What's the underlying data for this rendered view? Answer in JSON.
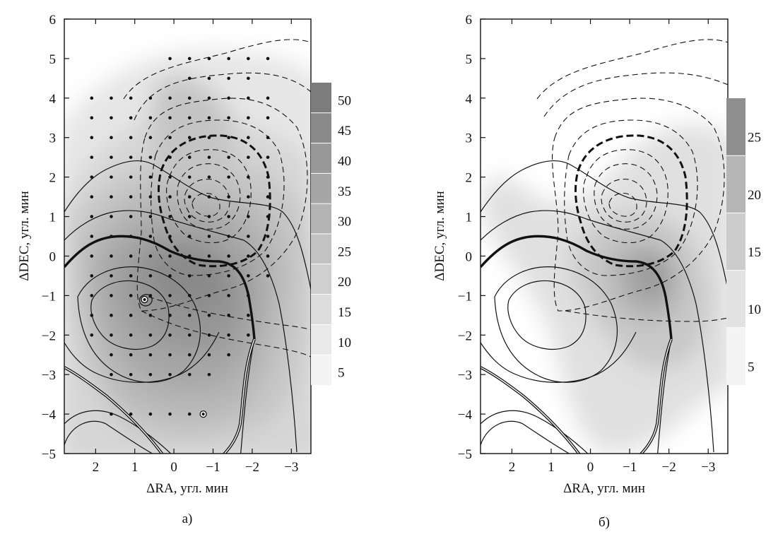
{
  "chart_data": [
    {
      "type": "heatmap",
      "panel_label": "а)",
      "xlabel": "ΔRA, угл. мин",
      "ylabel": "ΔDEC, угл. мин",
      "xlim": [
        2.8,
        -3.5
      ],
      "ylim": [
        -5,
        6
      ],
      "x_ticks": [
        2,
        1,
        0,
        -1,
        -2,
        -3
      ],
      "x_tick_labels": [
        "2",
        "1",
        "0",
        "−1",
        "−2",
        "−3"
      ],
      "y_ticks": [
        -5,
        -4,
        -3,
        -2,
        -1,
        0,
        1,
        2,
        3,
        4,
        5,
        6
      ],
      "y_tick_labels": [
        "−5",
        "−4",
        "−3",
        "−2",
        "−1",
        "0",
        "1",
        "2",
        "3",
        "4",
        "5",
        "6"
      ],
      "colorbar": {
        "levels": [
          5,
          10,
          15,
          20,
          25,
          30,
          35,
          40,
          45,
          50
        ],
        "labels": [
          "5",
          "10",
          "15",
          "20",
          "25",
          "30",
          "35",
          "40",
          "45",
          "50"
        ],
        "range": [
          2.5,
          52.5
        ],
        "colors": [
          "#f4f4f4",
          "#e9e9e9",
          "#dcdcdc",
          "#cfcfcf",
          "#c2c2c2",
          "#b4b4b4",
          "#a6a6a6",
          "#989898",
          "#8a8a8a",
          "#7c7c7c"
        ]
      },
      "peak": {
        "x": 0.3,
        "y": -0.5,
        "value": 44
      },
      "grid_points": "regular sampling grid, 0.5 arcmin spacing",
      "marked_points": [
        {
          "x": 0.75,
          "y": -1.1
        },
        {
          "x": -0.75,
          "y": -4.0
        }
      ],
      "grid": false
    },
    {
      "type": "heatmap",
      "panel_label": "б)",
      "xlabel": "ΔRA, угл. мин",
      "ylabel": "ΔDEC, угл. мин",
      "xlim": [
        2.8,
        -3.5
      ],
      "ylim": [
        -5,
        6
      ],
      "x_ticks": [
        2,
        1,
        0,
        -1,
        -2,
        -3
      ],
      "x_tick_labels": [
        "2",
        "1",
        "0",
        "−1",
        "−2",
        "−3"
      ],
      "y_ticks": [
        -5,
        -4,
        -3,
        -2,
        -1,
        0,
        1,
        2,
        3,
        4,
        5,
        6
      ],
      "y_tick_labels": [
        "−5",
        "−4",
        "−3",
        "−2",
        "−1",
        "0",
        "1",
        "2",
        "3",
        "4",
        "5",
        "6"
      ],
      "colorbar": {
        "levels": [
          5,
          10,
          15,
          20,
          25
        ],
        "labels": [
          "5",
          "10",
          "15",
          "20",
          "25"
        ],
        "range": [
          2.5,
          27.5
        ],
        "colors": [
          "#f4f4f4",
          "#e2e2e2",
          "#cccccc",
          "#b5b5b5",
          "#8f8f8f"
        ]
      },
      "peak": {
        "x": -1.1,
        "y": -0.3,
        "value": 22
      },
      "grid": false
    }
  ]
}
